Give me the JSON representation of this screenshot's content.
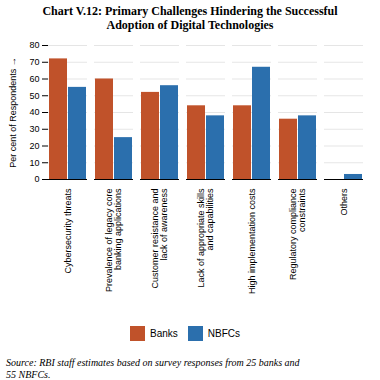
{
  "chart_data": {
    "type": "bar",
    "title": "Chart V.12: Primary Challenges Hindering the Successful\nAdoption of Digital Technologies",
    "categories": [
      "Cybersecurity threats",
      "Prevalence of legacy core\nbanking applications",
      "Customer resistance and\nlack of awareness",
      "Lack of appropriate skills\nand capabilities",
      "High implementation costs",
      "Regulatory compliance\nconstraints",
      "Others"
    ],
    "series": [
      {
        "name": "Banks",
        "color": "#C0522A",
        "values": [
          72,
          60,
          52,
          44,
          44,
          36,
          0
        ]
      },
      {
        "name": "NBFCs",
        "color": "#2B6FAD",
        "values": [
          55,
          25,
          56,
          38,
          67,
          38,
          3
        ]
      }
    ],
    "ylabel": "Per cent of Respondents",
    "ylim": [
      0,
      80
    ],
    "yticks": [
      0,
      10,
      20,
      30,
      40,
      50,
      60,
      70,
      80
    ],
    "grid": true,
    "legend": "bottom",
    "annotations": [
      "Source: RBI staff estimates based on survey responses from 25 banks and\n55 NBFCs."
    ]
  }
}
